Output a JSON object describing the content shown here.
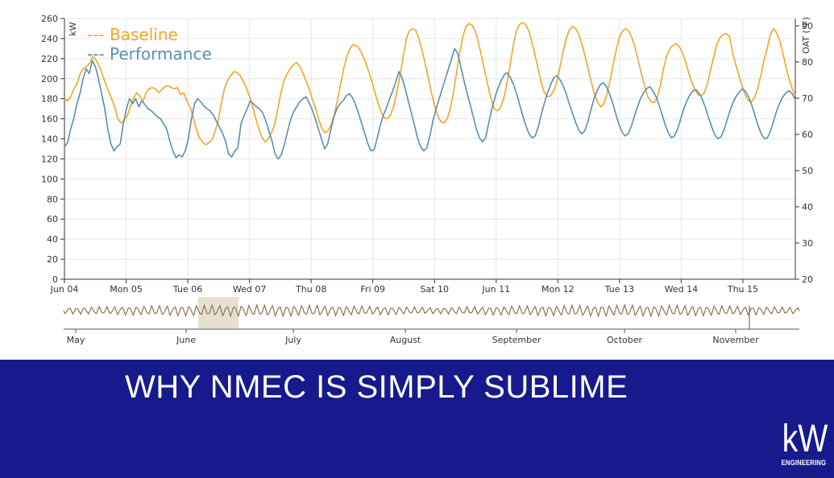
{
  "chart_data": {
    "type": "line",
    "y_left_label": "kW",
    "y_right_label": "OAT (°F)",
    "ylim_left": [
      0,
      260
    ],
    "ylim_right": [
      20,
      92
    ],
    "yticks_left": [
      0,
      20,
      40,
      60,
      80,
      100,
      120,
      140,
      160,
      180,
      200,
      220,
      240,
      260
    ],
    "yticks_right": [
      20,
      30,
      40,
      50,
      60,
      70,
      80,
      90
    ],
    "x_ticks": [
      "Jun 04",
      "Mon 05",
      "Tue 06",
      "Wed 07",
      "Thu 08",
      "Fri 09",
      "Sat 10",
      "Jun 11",
      "Mon 12",
      "Tue 13",
      "Wed 14",
      "Thu 15"
    ],
    "grid": true,
    "legend_position": "top-left",
    "series": [
      {
        "name": "Baseline",
        "color": "#f5a623",
        "values": [
          180,
          178,
          182,
          190,
          195,
          205,
          210,
          212,
          215,
          222,
          219,
          213,
          205,
          196,
          188,
          180,
          172,
          160,
          156,
          158,
          163,
          172,
          180,
          186,
          183,
          177,
          186,
          190,
          191,
          190,
          186,
          189,
          192,
          193,
          191,
          190,
          191,
          184,
          186,
          178,
          172,
          162,
          150,
          141,
          137,
          134,
          136,
          139,
          147,
          158,
          175,
          190,
          198,
          203,
          207,
          206,
          203,
          197,
          191,
          182,
          172,
          160,
          150,
          141,
          137,
          140,
          146,
          154,
          170,
          186,
          198,
          205,
          210,
          214,
          216,
          212,
          206,
          198,
          190,
          180,
          171,
          160,
          151,
          146,
          148,
          154,
          164,
          178,
          194,
          210,
          222,
          230,
          234,
          233,
          230,
          224,
          216,
          207,
          197,
          186,
          175,
          166,
          161,
          160,
          164,
          173,
          187,
          204,
          222,
          240,
          248,
          250,
          248,
          240,
          228,
          215,
          200,
          186,
          173,
          163,
          157,
          156,
          160,
          170,
          186,
          206,
          226,
          242,
          252,
          255,
          253,
          247,
          236,
          222,
          208,
          193,
          180,
          170,
          168,
          171,
          180,
          194,
          212,
          232,
          247,
          254,
          256,
          254,
          248,
          237,
          224,
          210,
          196,
          186,
          182,
          183,
          188,
          197,
          212,
          227,
          240,
          249,
          252,
          250,
          244,
          234,
          222,
          209,
          196,
          184,
          176,
          172,
          175,
          185,
          199,
          215,
          230,
          242,
          248,
          250,
          247,
          240,
          230,
          217,
          204,
          192,
          182,
          177,
          176,
          181,
          194,
          210,
          223,
          230,
          233,
          235,
          232,
          226,
          217,
          206,
          196,
          189,
          184,
          183,
          186,
          195,
          209,
          222,
          235,
          241,
          244,
          245,
          242,
          226,
          214,
          204,
          193,
          184,
          178,
          177,
          181,
          190,
          203,
          218,
          230,
          244,
          250,
          246,
          238,
          226,
          212,
          200,
          190,
          183
        ]
      },
      {
        "name": "Performance",
        "color": "#5a8fb0",
        "values": [
          132,
          136,
          150,
          160,
          175,
          185,
          200,
          210,
          205,
          218,
          212,
          200,
          185,
          170,
          150,
          135,
          128,
          132,
          135,
          155,
          170,
          180,
          175,
          180,
          172,
          178,
          174,
          170,
          168,
          165,
          162,
          160,
          155,
          150,
          138,
          128,
          121,
          124,
          122,
          128,
          140,
          160,
          175,
          180,
          177,
          173,
          170,
          168,
          164,
          158,
          152,
          146,
          138,
          125,
          122,
          128,
          131,
          155,
          163,
          170,
          178,
          175,
          172,
          170,
          166,
          158,
          148,
          138,
          125,
          120,
          124,
          134,
          147,
          159,
          167,
          172,
          177,
          180,
          182,
          176,
          169,
          160,
          150,
          140,
          130,
          135,
          149,
          162,
          170,
          175,
          178,
          183,
          185,
          181,
          174,
          165,
          155,
          145,
          135,
          128,
          129,
          141,
          154,
          164,
          171,
          180,
          188,
          197,
          207,
          201,
          190,
          178,
          166,
          154,
          141,
          132,
          128,
          131,
          143,
          158,
          170,
          180,
          190,
          200,
          210,
          220,
          230,
          225,
          212,
          198,
          186,
          174,
          162,
          150,
          141,
          137,
          141,
          156,
          170,
          181,
          191,
          198,
          204,
          206,
          201,
          194,
          185,
          174,
          163,
          153,
          145,
          141,
          143,
          152,
          165,
          176,
          186,
          194,
          201,
          203,
          199,
          193,
          185,
          175,
          166,
          157,
          149,
          145,
          148,
          157,
          169,
          180,
          188,
          194,
          196,
          192,
          185,
          176,
          165,
          155,
          147,
          143,
          145,
          152,
          162,
          172,
          180,
          186,
          190,
          192,
          188,
          182,
          174,
          164,
          154,
          146,
          141,
          143,
          150,
          160,
          170,
          178,
          184,
          188,
          189,
          185,
          179,
          171,
          161,
          152,
          144,
          140,
          142,
          149,
          159,
          169,
          177,
          183,
          187,
          190,
          187,
          181,
          173,
          163,
          153,
          145,
          140,
          141,
          148,
          158,
          168,
          176,
          182,
          186,
          188,
          185,
          179
        ]
      }
    ],
    "navigator": {
      "labels": [
        "May",
        "June",
        "July",
        "August",
        "September",
        "October",
        "November"
      ],
      "selection": "June 06 – June 07"
    }
  },
  "banner": {
    "title": "WHY NMEC IS SIMPLY SUBLIME",
    "logo_mark": "kW",
    "logo_sub": "ENGINEERING"
  },
  "colors": {
    "baseline": "#f5a623",
    "performance": "#5a8fb0",
    "banner_bg": "#161a8c",
    "grid": "#e6e6e6",
    "navigator_line": "#8b7355",
    "navigator_selection": "#e6e0d2"
  }
}
